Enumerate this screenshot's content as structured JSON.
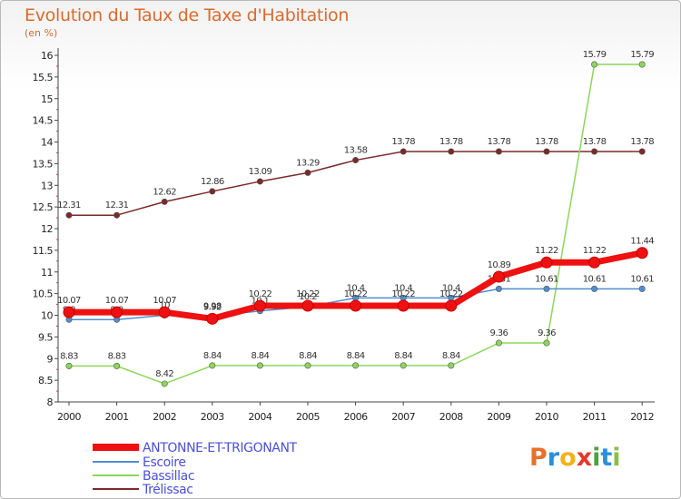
{
  "page": {
    "title": "Evolution du Taux de Taxe d'Habitation",
    "subtitle": "(en %)",
    "logo": {
      "letters": [
        "P",
        "r",
        "o",
        "x",
        "i",
        "t",
        "i"
      ],
      "colors": [
        "#e8712a",
        "#2a8fd8",
        "#f2b21b",
        "#e23b2b",
        "#4aa33d",
        "#2a8fd8",
        "#8bbf3f"
      ]
    }
  },
  "chart_data": {
    "type": "line",
    "title": "Evolution du Taux de Taxe d'Habitation",
    "ylabel": "(en %)",
    "xlabel": "",
    "x": [
      "2000",
      "2001",
      "2002",
      "2003",
      "2004",
      "2005",
      "2006",
      "2007",
      "2008",
      "2009",
      "2010",
      "2011",
      "2012"
    ],
    "ylim": [
      8,
      16
    ],
    "yticks": [
      "8",
      "8.5",
      "9",
      "9.5",
      "10",
      "10.5",
      "11",
      "11.5",
      "12",
      "12.5",
      "13",
      "13.5",
      "14",
      "14.5",
      "15",
      "15.5",
      "16"
    ],
    "grid": false,
    "legend_position": "bottom-left",
    "series": [
      {
        "name": "Trélissac",
        "color": "#7a2a2a",
        "width": 1.5,
        "values": [
          12.31,
          12.31,
          12.62,
          12.86,
          13.09,
          13.29,
          13.58,
          13.78,
          13.78,
          13.78,
          13.78,
          13.78,
          13.78
        ],
        "labels": [
          "12.31",
          "12.31",
          "12.62",
          "12.86",
          "13.09",
          "13.29",
          "13.58",
          "13.78",
          "13.78",
          "13.78",
          "13.78",
          "13.78",
          "13.78"
        ]
      },
      {
        "name": "Bassillac",
        "color": "#8cd65a",
        "width": 1.5,
        "values": [
          8.83,
          8.83,
          8.42,
          8.84,
          8.84,
          8.84,
          8.84,
          8.84,
          8.84,
          9.36,
          9.36,
          15.79,
          15.79
        ],
        "labels": [
          "8.83",
          "8.83",
          "8.42",
          "8.84",
          "8.84",
          "8.84",
          "8.84",
          "8.84",
          "8.84",
          "9.36",
          "9.36",
          "15.79",
          "15.79"
        ]
      },
      {
        "name": "Escoire",
        "color": "#4f8fd1",
        "width": 1.5,
        "values": [
          9.9,
          9.9,
          10.0,
          9.98,
          10.1,
          10.2,
          10.4,
          10.4,
          10.4,
          10.61,
          10.61,
          10.61,
          10.61
        ],
        "labels": [
          "9.9",
          "9.9",
          "10",
          "9.98",
          "10.1",
          "10.2",
          "10.4",
          "10.4",
          "10.4",
          "10.61",
          "10.61",
          "10.61",
          "10.61"
        ]
      },
      {
        "name": "ANTONNE-ET-TRIGONANT",
        "color": "#ee1111",
        "width": 7,
        "values": [
          10.07,
          10.07,
          10.07,
          9.92,
          10.22,
          10.22,
          10.22,
          10.22,
          10.22,
          10.89,
          11.22,
          11.22,
          11.44
        ],
        "labels": [
          "10.07",
          "10.07",
          "10.07",
          "9.92",
          "10.22",
          "10.22",
          "10.22",
          "10.22",
          "10.22",
          "10.89",
          "11.22",
          "11.22",
          "11.44"
        ]
      }
    ],
    "legend": [
      {
        "name": "ANTONNE-ET-TRIGONANT",
        "color": "#ee1111",
        "text_color": "#4a50d8"
      },
      {
        "name": "Escoire",
        "color": "#4f8fd1",
        "text_color": "#4a50d8"
      },
      {
        "name": "Bassillac",
        "color": "#8cd65a",
        "text_color": "#4a50d8"
      },
      {
        "name": "Trélissac",
        "color": "#7a2a2a",
        "text_color": "#4a50d8"
      }
    ]
  }
}
